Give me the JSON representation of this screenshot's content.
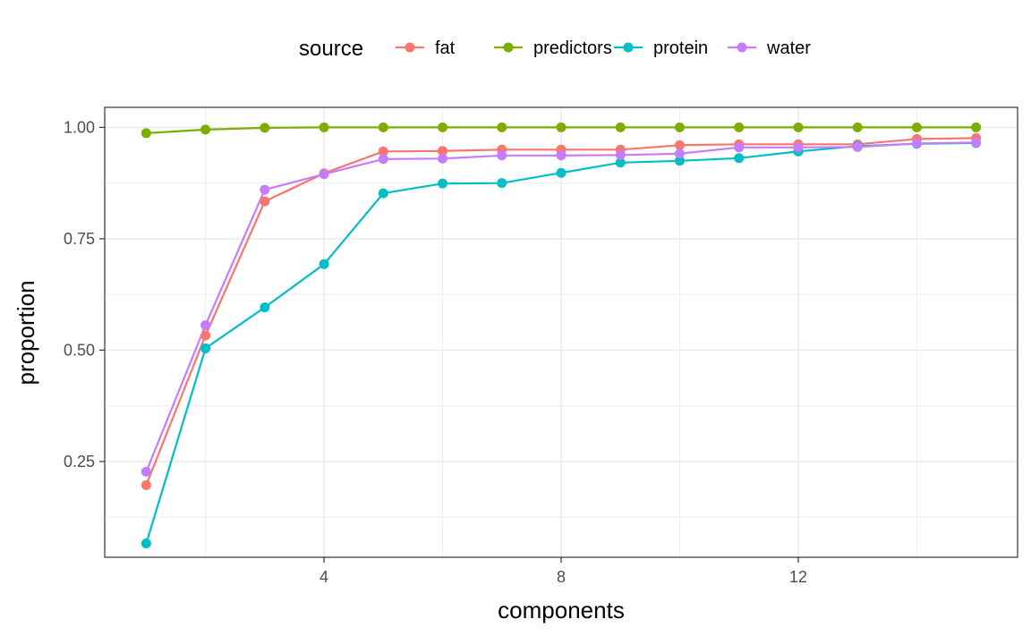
{
  "chart_data": {
    "type": "line",
    "xlabel": "components",
    "ylabel": "proportion",
    "legend_title": "source",
    "legend_position": "top",
    "grid": true,
    "xlim": [
      0.3,
      15.7
    ],
    "ylim": [
      0.035,
      1.045
    ],
    "x_ticks": [
      4,
      8,
      12
    ],
    "y_ticks": [
      0.25,
      0.5,
      0.75,
      1.0
    ],
    "y_tick_labels": [
      "0.25",
      "0.50",
      "0.75",
      "1.00"
    ],
    "x": [
      1,
      2,
      3,
      4,
      5,
      6,
      7,
      8,
      9,
      10,
      11,
      12,
      13,
      14,
      15
    ],
    "series": [
      {
        "name": "fat",
        "color": "#F8766D",
        "values": [
          0.197,
          0.533,
          0.834,
          0.897,
          0.946,
          0.947,
          0.95,
          0.95,
          0.95,
          0.96,
          0.962,
          0.962,
          0.962,
          0.974,
          0.976
        ]
      },
      {
        "name": "predictors",
        "color": "#7CAE00",
        "values": [
          0.987,
          0.995,
          0.999,
          1.0,
          1.0,
          1.0,
          1.0,
          1.0,
          1.0,
          1.0,
          1.0,
          1.0,
          1.0,
          1.0,
          1.0
        ]
      },
      {
        "name": "protein",
        "color": "#00BFC4",
        "values": [
          0.066,
          0.504,
          0.596,
          0.693,
          0.852,
          0.874,
          0.875,
          0.898,
          0.921,
          0.925,
          0.931,
          0.946,
          0.958,
          0.963,
          0.965
        ]
      },
      {
        "name": "water",
        "color": "#C77CFF",
        "values": [
          0.227,
          0.556,
          0.86,
          0.895,
          0.929,
          0.93,
          0.937,
          0.937,
          0.938,
          0.941,
          0.955,
          0.955,
          0.956,
          0.964,
          0.966
        ]
      }
    ]
  }
}
